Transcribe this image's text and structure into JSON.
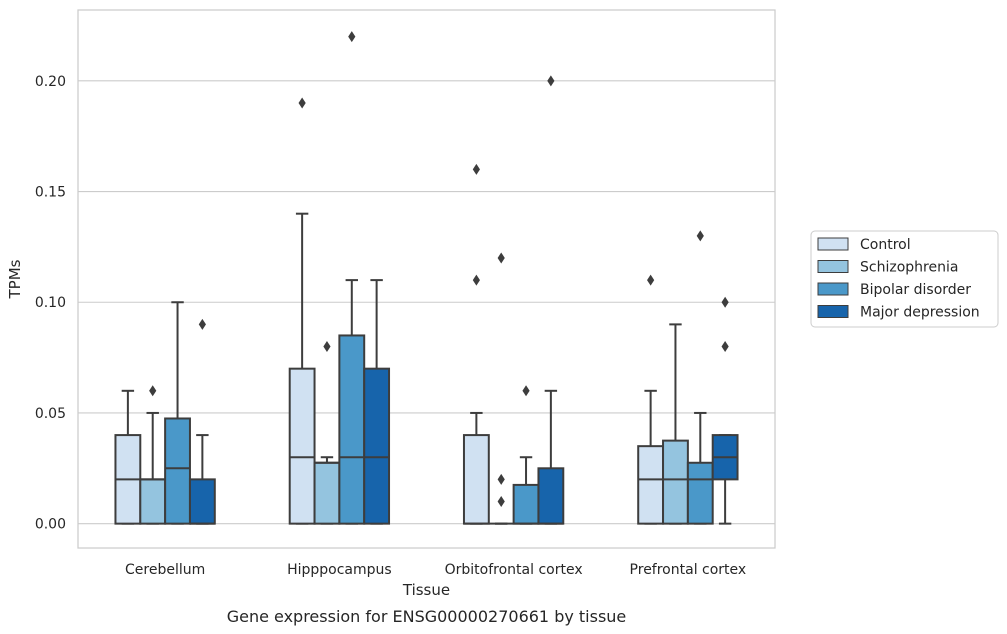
{
  "chart_data": {
    "type": "box",
    "title": "",
    "caption": "Gene expression for ENSG00000270661 by tissue",
    "xlabel": "Tissue",
    "ylabel": "TPMs",
    "ylim": [
      -0.011,
      0.232
    ],
    "yticks": [
      "0.00",
      "0.05",
      "0.10",
      "0.15",
      "0.20"
    ],
    "ytick_values": [
      0.0,
      0.05,
      0.1,
      0.15,
      0.2
    ],
    "grid": true,
    "legend_position": "right",
    "categories": [
      "Cerebellum",
      "Hipppocampus",
      "Orbitofrontal cortex",
      "Prefrontal cortex"
    ],
    "series": [
      {
        "name": "Control",
        "color": "#d0e1f2",
        "boxes": [
          {
            "whislo": 0.0,
            "q1": 0.0,
            "med": 0.02,
            "q3": 0.04,
            "whishi": 0.06,
            "fliers": []
          },
          {
            "whislo": 0.0,
            "q1": 0.0,
            "med": 0.03,
            "q3": 0.07,
            "whishi": 0.14,
            "fliers": [
              0.19
            ]
          },
          {
            "whislo": 0.0,
            "q1": 0.0,
            "med": 0.0,
            "q3": 0.04,
            "whishi": 0.05,
            "fliers": [
              0.11,
              0.16
            ]
          },
          {
            "whislo": 0.0,
            "q1": 0.0,
            "med": 0.02,
            "q3": 0.035,
            "whishi": 0.06,
            "fliers": [
              0.11
            ]
          }
        ]
      },
      {
        "name": "Schizophrenia",
        "color": "#94c4df",
        "boxes": [
          {
            "whislo": 0.0,
            "q1": 0.0,
            "med": 0.02,
            "q3": 0.02,
            "whishi": 0.05,
            "fliers": [
              0.06
            ]
          },
          {
            "whislo": 0.0,
            "q1": 0.0,
            "med": 0.0275,
            "q3": 0.0275,
            "whishi": 0.03,
            "fliers": [
              0.08
            ]
          },
          {
            "whislo": 0.0,
            "q1": 0.0,
            "med": 0.0,
            "q3": 0.0,
            "whishi": 0.0,
            "fliers": [
              0.01,
              0.02,
              0.12
            ]
          },
          {
            "whislo": 0.0,
            "q1": 0.0,
            "med": 0.02,
            "q3": 0.0375,
            "whishi": 0.09,
            "fliers": []
          }
        ]
      },
      {
        "name": "Bipolar disorder",
        "color": "#4a98c9",
        "boxes": [
          {
            "whislo": 0.0,
            "q1": 0.0,
            "med": 0.025,
            "q3": 0.0475,
            "whishi": 0.1,
            "fliers": []
          },
          {
            "whislo": 0.0,
            "q1": 0.0,
            "med": 0.03,
            "q3": 0.085,
            "whishi": 0.11,
            "fliers": [
              0.22
            ]
          },
          {
            "whislo": 0.0,
            "q1": 0.0,
            "med": 0.0,
            "q3": 0.0175,
            "whishi": 0.03,
            "fliers": [
              0.06
            ]
          },
          {
            "whislo": 0.0,
            "q1": 0.0,
            "med": 0.02,
            "q3": 0.0275,
            "whishi": 0.05,
            "fliers": [
              0.13
            ]
          }
        ]
      },
      {
        "name": "Major depression",
        "color": "#1764ab",
        "boxes": [
          {
            "whislo": 0.0,
            "q1": 0.0,
            "med": 0.0,
            "q3": 0.02,
            "whishi": 0.04,
            "fliers": [
              0.09
            ]
          },
          {
            "whislo": 0.0,
            "q1": 0.0,
            "med": 0.03,
            "q3": 0.07,
            "whishi": 0.11,
            "fliers": []
          },
          {
            "whislo": 0.0,
            "q1": 0.0,
            "med": 0.0,
            "q3": 0.025,
            "whishi": 0.06,
            "fliers": [
              0.2
            ]
          },
          {
            "whislo": 0.0,
            "q1": 0.02,
            "med": 0.03,
            "q3": 0.04,
            "whishi": 0.04,
            "fliers": [
              0.08,
              0.1
            ]
          }
        ]
      }
    ]
  }
}
